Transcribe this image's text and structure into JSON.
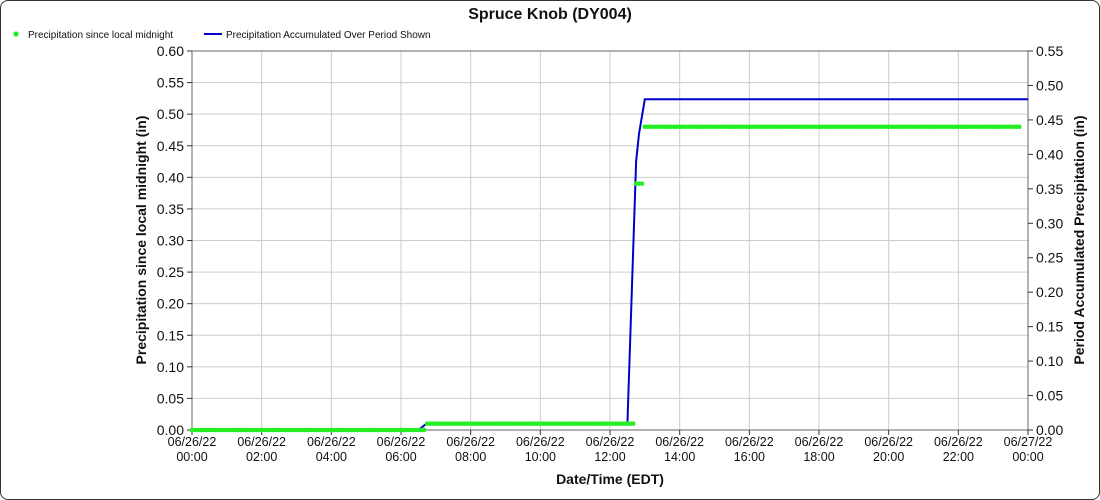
{
  "chart_data": {
    "type": "line",
    "title": "Spruce Knob (DY004)",
    "xlabel": "Date/Time (EDT)",
    "ylabel_left": "Precipitation since local midnight (in)",
    "ylabel_right": "Period Accumulated Precipitation (in)",
    "x_start": "2022-06-26T00:00",
    "x_end": "2022-06-27T00:00",
    "x_ticks": [
      [
        "06/26/22",
        "00:00"
      ],
      [
        "06/26/22",
        "02:00"
      ],
      [
        "06/26/22",
        "04:00"
      ],
      [
        "06/26/22",
        "06:00"
      ],
      [
        "06/26/22",
        "08:00"
      ],
      [
        "06/26/22",
        "10:00"
      ],
      [
        "06/26/22",
        "12:00"
      ],
      [
        "06/26/22",
        "14:00"
      ],
      [
        "06/26/22",
        "16:00"
      ],
      [
        "06/26/22",
        "18:00"
      ],
      [
        "06/26/22",
        "20:00"
      ],
      [
        "06/26/22",
        "22:00"
      ],
      [
        "06/27/22",
        "00:00"
      ]
    ],
    "ylim_left": [
      0,
      0.6
    ],
    "y_ticks_left": [
      "0.00",
      "0.05",
      "0.10",
      "0.15",
      "0.20",
      "0.25",
      "0.30",
      "0.35",
      "0.40",
      "0.45",
      "0.50",
      "0.55",
      "0.60"
    ],
    "ylim_right": [
      0,
      0.55
    ],
    "y_ticks_right": [
      "0.00",
      "0.05",
      "0.10",
      "0.15",
      "0.20",
      "0.25",
      "0.30",
      "0.35",
      "0.40",
      "0.45",
      "0.50",
      "0.55"
    ],
    "grid": true,
    "legend_placement": "top-left",
    "series": [
      {
        "name": "Precipitation since local midnight",
        "axis": "left",
        "style": "dots",
        "color": "#22ee22",
        "points": [
          [
            "2022-06-26T00:00",
            0.0
          ],
          [
            "2022-06-26T06:30",
            0.0
          ],
          [
            "2022-06-26T06:45",
            0.01
          ],
          [
            "2022-06-26T12:30",
            0.01
          ],
          [
            "2022-06-26T12:45",
            0.39
          ],
          [
            "2022-06-26T13:00",
            0.48
          ],
          [
            "2022-06-26T23:45",
            0.48
          ]
        ]
      },
      {
        "name": "Precipitation Accumulated Over Period Shown",
        "axis": "right",
        "style": "line",
        "color": "#0000cc",
        "points": [
          [
            "2022-06-26T00:00",
            0.0
          ],
          [
            "2022-06-26T06:30",
            0.0
          ],
          [
            "2022-06-26T06:45",
            0.01
          ],
          [
            "2022-06-26T12:30",
            0.01
          ],
          [
            "2022-06-26T12:45",
            0.39
          ],
          [
            "2022-06-26T12:50",
            0.43
          ],
          [
            "2022-06-26T13:00",
            0.48
          ],
          [
            "2022-06-27T00:00",
            0.48
          ]
        ]
      }
    ]
  }
}
